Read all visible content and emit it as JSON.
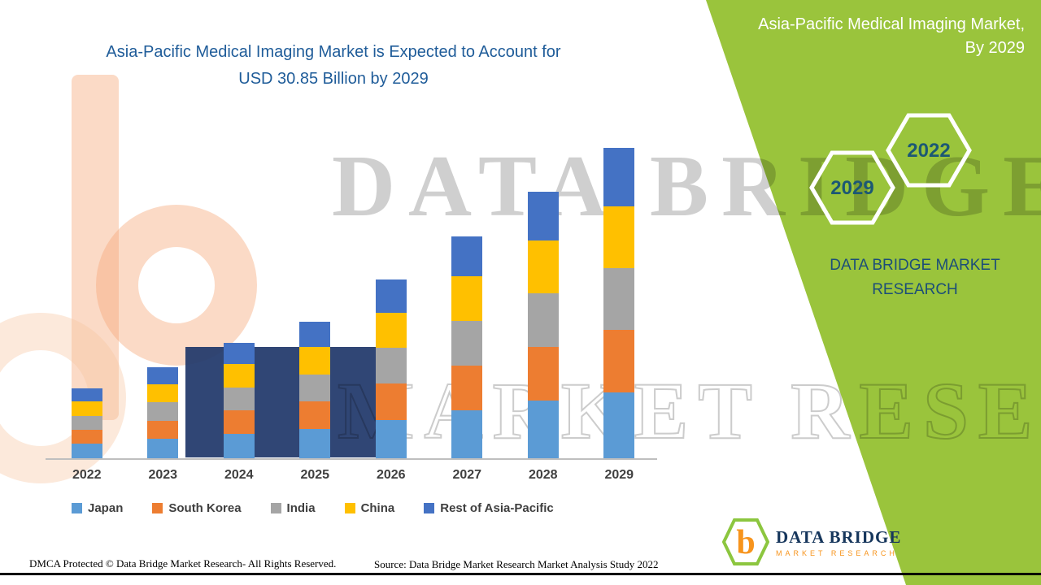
{
  "header": {
    "title_line1": "Asia-Pacific Medical Imaging Market is Expected to Account for",
    "title_line2": "USD 30.85 Billion by 2029"
  },
  "side_panel": {
    "title_line1": "Asia-Pacific Medical Imaging Market,",
    "title_line2": "By 2029",
    "hexagons": [
      "2029",
      "2022"
    ],
    "brand_line1": "DATA BRIDGE MARKET",
    "brand_line2": "RESEARCH",
    "green_color": "#9AC43C"
  },
  "chart_data": {
    "type": "bar",
    "stacked": true,
    "title": "Asia-Pacific Medical Imaging Market is Expected to Account for USD 30.85 Billion by 2029",
    "unit": "USD Billion",
    "ylim": [
      0,
      31
    ],
    "grid": false,
    "legend_position": "bottom",
    "categories": [
      "2022",
      "2023",
      "2024",
      "2025",
      "2026",
      "2027",
      "2028",
      "2029"
    ],
    "series": [
      {
        "name": "Japan",
        "color": "#5B9BD5",
        "values": [
          1.5,
          2.0,
          2.5,
          3.0,
          3.9,
          4.8,
          5.8,
          6.6
        ]
      },
      {
        "name": "South Korea",
        "color": "#ED7D31",
        "values": [
          1.4,
          1.8,
          2.3,
          2.7,
          3.6,
          4.5,
          5.3,
          6.2
        ]
      },
      {
        "name": "India",
        "color": "#A5A5A5",
        "values": [
          1.4,
          1.8,
          2.3,
          2.7,
          3.5,
          4.4,
          5.3,
          6.1
        ]
      },
      {
        "name": "China",
        "color": "#FFC000",
        "values": [
          1.4,
          1.8,
          2.3,
          2.7,
          3.5,
          4.4,
          5.3,
          6.1
        ]
      },
      {
        "name": "Rest of Asia-Pacific",
        "color": "#4472C4",
        "values": [
          1.3,
          1.7,
          2.1,
          2.5,
          3.3,
          4.0,
          4.8,
          5.85
        ]
      }
    ],
    "totals_note": "2029 total equals 30.85 USD Billion as stated in title"
  },
  "watermark": {
    "line1": "DATA BRIDGE",
    "line2": "MARKET RESEARCH"
  },
  "footer": {
    "dmca": "DMCA Protected © Data Bridge Market Research- All Rights Reserved.",
    "source": "Source: Data Bridge Market Research Market Analysis Study 2022"
  },
  "logo": {
    "brand": "DATA BRIDGE",
    "sub": "MARKET RESEARCH"
  }
}
